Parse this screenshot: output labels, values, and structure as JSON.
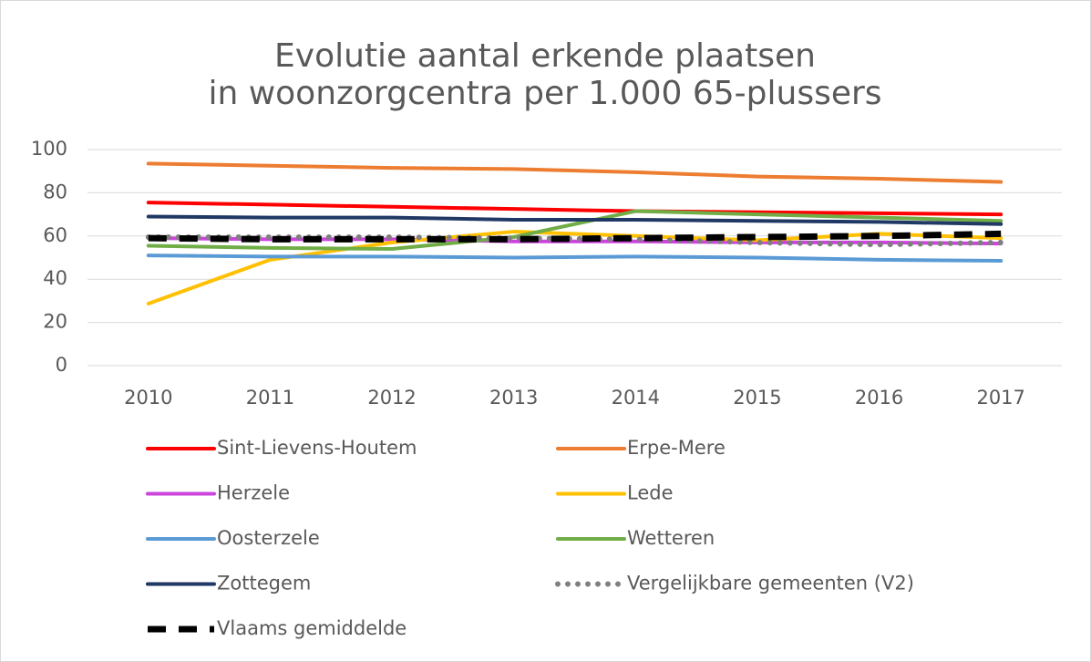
{
  "chart_data": {
    "type": "line",
    "title": [
      "Evolutie aantal erkende plaatsen",
      "in woonzorgcentra per 1.000 65-plussers"
    ],
    "categories": [
      "2010",
      "2011",
      "2012",
      "2013",
      "2014",
      "2015",
      "2016",
      "2017"
    ],
    "series": [
      {
        "name": "Sint-Lievens-Houtem",
        "color": "#ff0000",
        "values": [
          75.5,
          74.5,
          73.5,
          72.5,
          71.5,
          71,
          70.5,
          70
        ]
      },
      {
        "name": "Erpe-Mere",
        "color": "#ed7d31",
        "values": [
          93.5,
          92.5,
          91.5,
          91,
          89.5,
          87.5,
          86.5,
          85
        ]
      },
      {
        "name": "Herzele",
        "color": "#cc44dd",
        "values": [
          59,
          58.5,
          58.5,
          57.5,
          57.5,
          57,
          57,
          56.5
        ]
      },
      {
        "name": "Lede",
        "color": "#ffc000",
        "values": [
          28.7,
          49,
          57,
          62,
          60,
          58,
          61,
          59
        ]
      },
      {
        "name": "Oosterzele",
        "color": "#5b9bd5",
        "values": [
          51,
          50.5,
          50.5,
          50,
          50.5,
          50,
          49,
          48.5
        ]
      },
      {
        "name": "Wetteren",
        "color": "#70ad47",
        "values": [
          55.5,
          54.5,
          54,
          59.5,
          71.5,
          70,
          68.5,
          67
        ]
      },
      {
        "name": "Zottegem",
        "color": "#203864",
        "values": [
          69,
          68.5,
          68.5,
          67.5,
          67.5,
          67,
          66.5,
          65.5
        ]
      },
      {
        "name": "Vergelijkbare gemeenten (V2)",
        "color": "#7f7f7f",
        "dash": "dotted",
        "values": [
          59.5,
          59.5,
          59.5,
          59,
          58.5,
          57,
          56,
          57
        ]
      },
      {
        "name": "Vlaams gemiddelde",
        "color": "#000000",
        "dash": "dashed",
        "values": [
          59,
          58.5,
          58.5,
          58.5,
          59,
          59.5,
          60,
          61
        ]
      }
    ],
    "ylim": [
      0,
      100
    ],
    "yticks": [
      0,
      20,
      40,
      60,
      80,
      100
    ],
    "grid": true,
    "legend": "bottom"
  }
}
